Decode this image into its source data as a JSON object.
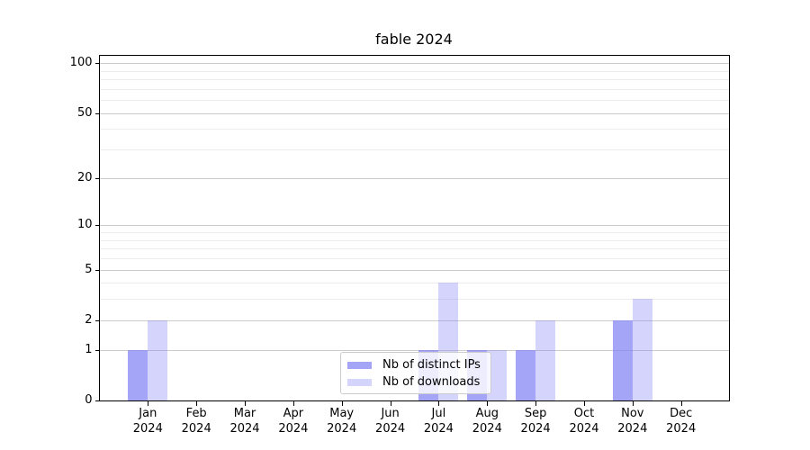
{
  "title": "fable 2024",
  "chart_data": {
    "type": "bar",
    "title": "fable 2024",
    "categories": [
      "Jan",
      "Feb",
      "Mar",
      "Apr",
      "May",
      "Jun",
      "Jul",
      "Aug",
      "Sep",
      "Oct",
      "Nov",
      "Dec"
    ],
    "category_year": "2024",
    "series": [
      {
        "name": "Nb of distinct IPs",
        "fill": "rgba(130,130,245,0.72)",
        "rendered_hex": "#aaaaf8",
        "values": [
          1,
          0,
          0,
          0,
          0,
          0,
          1,
          1,
          1,
          0,
          2,
          0
        ]
      },
      {
        "name": "Nb of downloads",
        "fill": "rgba(130,130,245,0.34)",
        "rendered_hex": "#dcdcfa",
        "values": [
          2,
          0,
          0,
          0,
          0,
          0,
          4,
          1,
          2,
          0,
          3,
          0
        ]
      }
    ],
    "xlabel": "",
    "ylabel": "",
    "y_scale": "log1p",
    "y_ticks": [
      0,
      1,
      2,
      5,
      10,
      20,
      50,
      100
    ],
    "y_minor_gridlines": [
      3,
      4,
      6,
      7,
      8,
      9,
      30,
      40,
      60,
      70,
      80,
      90
    ],
    "ylim": [
      0,
      112
    ],
    "grid": "horizontal",
    "legend_position": "inside-bottom-center"
  },
  "colors": {
    "grid_major": "#cccccc",
    "grid_minor": "#ececec",
    "spine": "#000000",
    "background": "#ffffff",
    "bar_distinct_ips": "#aaaaf8",
    "bar_downloads": "#dcdcfa"
  }
}
